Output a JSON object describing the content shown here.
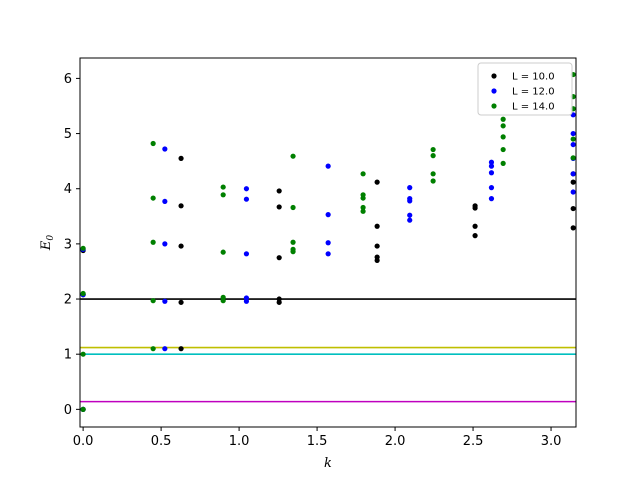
{
  "chart_data": {
    "type": "scatter",
    "xlabel": "k",
    "ylabel_base": "E",
    "ylabel_sub": "0",
    "xlim": [
      -0.02,
      3.16
    ],
    "ylim": [
      -0.32,
      6.37
    ],
    "x_ticks": [
      0.0,
      0.5,
      1.0,
      1.5,
      2.0,
      2.5,
      3.0
    ],
    "x_tick_labels": [
      "0.0",
      "0.5",
      "1.0",
      "1.5",
      "2.0",
      "2.5",
      "3.0"
    ],
    "y_ticks": [
      0,
      1,
      2,
      3,
      4,
      5,
      6
    ],
    "y_tick_labels": [
      "0",
      "1",
      "2",
      "3",
      "4",
      "5",
      "6"
    ],
    "legend_position": "top-right",
    "hlines": [
      {
        "y": 2.0,
        "color": "#000000"
      },
      {
        "y": 1.12,
        "color": "#bfbf00"
      },
      {
        "y": 1.0,
        "color": "#00bfbf"
      },
      {
        "y": 0.14,
        "color": "#bf00bf"
      }
    ],
    "series": [
      {
        "name": "L = 10.0",
        "color": "#000000",
        "points": [
          [
            0,
            0.0
          ],
          [
            0,
            2.08
          ],
          [
            0,
            2.88
          ],
          [
            0.628,
            1.1
          ],
          [
            0.628,
            1.94
          ],
          [
            0.628,
            2.96
          ],
          [
            0.628,
            3.69
          ],
          [
            0.628,
            4.55
          ],
          [
            1.257,
            1.94
          ],
          [
            1.257,
            2.0
          ],
          [
            1.257,
            2.75
          ],
          [
            1.257,
            3.67
          ],
          [
            1.257,
            3.96
          ],
          [
            1.885,
            2.7
          ],
          [
            1.885,
            2.76
          ],
          [
            1.885,
            2.96
          ],
          [
            1.885,
            3.32
          ],
          [
            1.885,
            4.12
          ],
          [
            2.513,
            3.15
          ],
          [
            2.513,
            3.32
          ],
          [
            2.513,
            3.65
          ],
          [
            2.513,
            3.69
          ],
          [
            3.142,
            3.29
          ],
          [
            3.142,
            3.64
          ],
          [
            3.142,
            4.12
          ],
          [
            3.142,
            4.27
          ]
        ]
      },
      {
        "name": "L = 12.0",
        "color": "#0000ff",
        "points": [
          [
            0,
            0.0
          ],
          [
            0,
            2.08
          ],
          [
            0,
            2.9
          ],
          [
            0.524,
            1.1
          ],
          [
            0.524,
            1.96
          ],
          [
            0.524,
            3.0
          ],
          [
            0.524,
            3.77
          ],
          [
            0.524,
            4.72
          ],
          [
            1.047,
            1.96
          ],
          [
            1.047,
            2.02
          ],
          [
            1.047,
            2.82
          ],
          [
            1.047,
            3.81
          ],
          [
            1.047,
            4.0
          ],
          [
            1.571,
            2.82
          ],
          [
            1.571,
            3.02
          ],
          [
            1.571,
            3.53
          ],
          [
            1.571,
            4.41
          ],
          [
            2.094,
            3.43
          ],
          [
            2.094,
            3.52
          ],
          [
            2.094,
            3.78
          ],
          [
            2.094,
            3.82
          ],
          [
            2.094,
            4.02
          ],
          [
            2.618,
            3.82
          ],
          [
            2.618,
            4.02
          ],
          [
            2.618,
            4.29
          ],
          [
            2.618,
            4.41
          ],
          [
            2.618,
            4.48
          ],
          [
            3.142,
            3.94
          ],
          [
            3.142,
            4.27
          ],
          [
            3.142,
            4.55
          ],
          [
            3.142,
            4.8
          ],
          [
            3.142,
            5.0
          ],
          [
            3.142,
            5.34
          ]
        ]
      },
      {
        "name": "L = 14.0",
        "color": "#008000",
        "points": [
          [
            0,
            0.0
          ],
          [
            0,
            1.0
          ],
          [
            0,
            2.1
          ],
          [
            0,
            2.92
          ],
          [
            0.449,
            1.1
          ],
          [
            0.449,
            1.97
          ],
          [
            0.449,
            3.03
          ],
          [
            0.449,
            3.83
          ],
          [
            0.449,
            4.82
          ],
          [
            0.898,
            1.97
          ],
          [
            0.898,
            2.03
          ],
          [
            0.898,
            2.85
          ],
          [
            0.898,
            3.89
          ],
          [
            0.898,
            4.03
          ],
          [
            1.346,
            2.86
          ],
          [
            1.346,
            2.9
          ],
          [
            1.346,
            3.03
          ],
          [
            1.346,
            3.66
          ],
          [
            1.346,
            4.59
          ],
          [
            1.795,
            3.59
          ],
          [
            1.795,
            3.66
          ],
          [
            1.795,
            3.83
          ],
          [
            1.795,
            3.89
          ],
          [
            1.795,
            4.27
          ],
          [
            2.244,
            4.14
          ],
          [
            2.244,
            4.27
          ],
          [
            2.244,
            4.6
          ],
          [
            2.244,
            4.71
          ],
          [
            2.693,
            4.46
          ],
          [
            2.693,
            4.71
          ],
          [
            2.693,
            4.94
          ],
          [
            2.693,
            5.14
          ],
          [
            2.693,
            5.26
          ],
          [
            3.142,
            4.56
          ],
          [
            3.142,
            4.9
          ],
          [
            3.142,
            5.45
          ],
          [
            3.142,
            5.67
          ],
          [
            3.142,
            6.07
          ]
        ]
      }
    ]
  }
}
